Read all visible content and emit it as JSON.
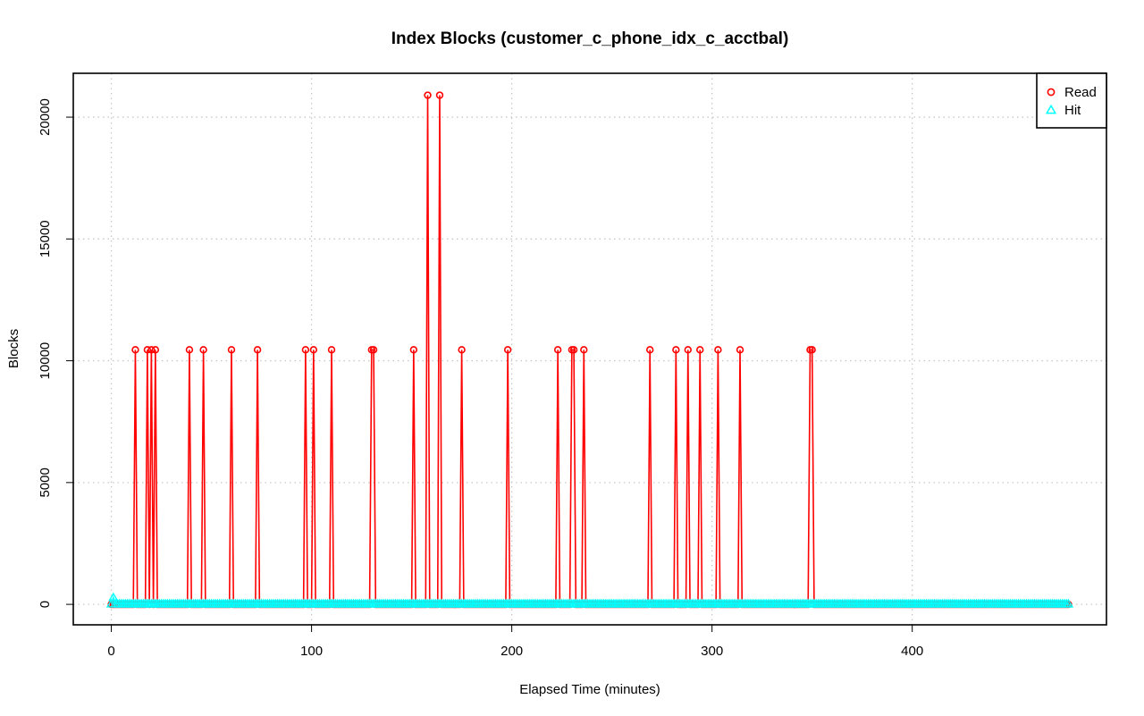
{
  "chart_data": {
    "type": "line",
    "title": "Index Blocks (customer_c_phone_idx_c_acctbal)",
    "xlabel": "Elapsed Time (minutes)",
    "ylabel": "Blocks",
    "xlim": [
      -19,
      497
    ],
    "ylim": [
      -840,
      21800
    ],
    "x_ticks": [
      0,
      100,
      200,
      300,
      400
    ],
    "y_ticks": [
      0,
      5000,
      10000,
      15000,
      20000
    ],
    "grid": true,
    "legend_position": "top-right",
    "x_range": [
      0,
      478
    ],
    "series": [
      {
        "name": "Read",
        "color": "#ff0000",
        "marker": "circle",
        "baseline": 0,
        "spikes": [
          {
            "x": 12,
            "y": 10450
          },
          {
            "x": 18,
            "y": 10450
          },
          {
            "x": 20,
            "y": 10450
          },
          {
            "x": 22,
            "y": 10450
          },
          {
            "x": 39,
            "y": 10450
          },
          {
            "x": 46,
            "y": 10450
          },
          {
            "x": 60,
            "y": 10450
          },
          {
            "x": 73,
            "y": 10450
          },
          {
            "x": 97,
            "y": 10450
          },
          {
            "x": 101,
            "y": 10450
          },
          {
            "x": 110,
            "y": 10450
          },
          {
            "x": 130,
            "y": 10450
          },
          {
            "x": 131,
            "y": 10450
          },
          {
            "x": 151,
            "y": 10450
          },
          {
            "x": 158,
            "y": 20900
          },
          {
            "x": 164,
            "y": 20900
          },
          {
            "x": 175,
            "y": 10450
          },
          {
            "x": 198,
            "y": 10450
          },
          {
            "x": 223,
            "y": 10450
          },
          {
            "x": 230,
            "y": 10450
          },
          {
            "x": 231,
            "y": 10450
          },
          {
            "x": 236,
            "y": 10450
          },
          {
            "x": 269,
            "y": 10450
          },
          {
            "x": 282,
            "y": 10450
          },
          {
            "x": 288,
            "y": 10450
          },
          {
            "x": 294,
            "y": 10450
          },
          {
            "x": 303,
            "y": 10450
          },
          {
            "x": 314,
            "y": 10450
          },
          {
            "x": 349,
            "y": 10450
          },
          {
            "x": 350,
            "y": 10450
          }
        ]
      },
      {
        "name": "Hit",
        "color": "#00ffff",
        "marker": "triangle",
        "baseline": 20,
        "spikes": [
          {
            "x": 1,
            "y": 280
          }
        ]
      }
    ]
  }
}
